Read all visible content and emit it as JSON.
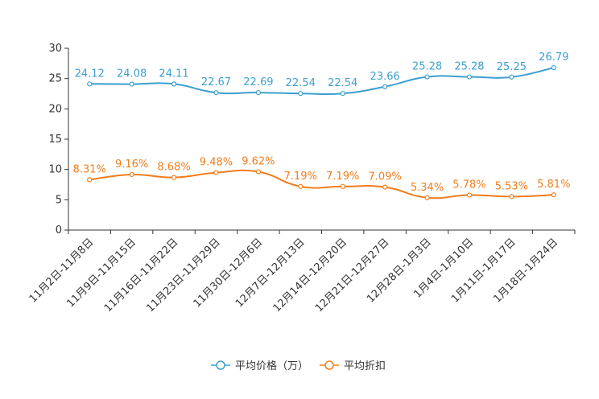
{
  "chart_data": {
    "type": "line",
    "title": "",
    "xlabel": "",
    "ylabel": "",
    "ylim": [
      0,
      30
    ],
    "yticks": [
      0,
      5,
      10,
      15,
      20,
      25,
      30
    ],
    "grid": false,
    "legend_position": "bottom-center",
    "categories": [
      "11月2日-11月8日",
      "11月9日-11月15日",
      "11月16日-11月22日",
      "11月23日-11月29日",
      "11月30日-12月6日",
      "12月7日-12月13日",
      "12月14日-12月20日",
      "12月21日-12月27日",
      "12月28日-1月3日",
      "1月4日-1月10日",
      "1月11日-1月17日",
      "1月18日-1月24日"
    ],
    "series": [
      {
        "name": "平均价格（万）",
        "color": "#3c9fd0",
        "values": [
          24.12,
          24.08,
          24.11,
          22.67,
          22.69,
          22.54,
          22.54,
          23.66,
          25.28,
          25.28,
          25.25,
          26.79
        ],
        "labels": [
          "24.12",
          "24.08",
          "24.11",
          "22.67",
          "22.69",
          "22.54",
          "22.54",
          "23.66",
          "25.28",
          "25.28",
          "25.25",
          "26.79"
        ]
      },
      {
        "name": "平均折扣",
        "color": "#f07d1c",
        "values": [
          8.31,
          9.16,
          8.68,
          9.48,
          9.62,
          7.19,
          7.19,
          7.09,
          5.34,
          5.78,
          5.53,
          5.81
        ],
        "labels": [
          "8.31%",
          "9.16%",
          "8.68%",
          "9.48%",
          "9.62%",
          "7.19%",
          "7.19%",
          "7.09%",
          "5.34%",
          "5.78%",
          "5.53%",
          "5.81%"
        ]
      }
    ]
  }
}
